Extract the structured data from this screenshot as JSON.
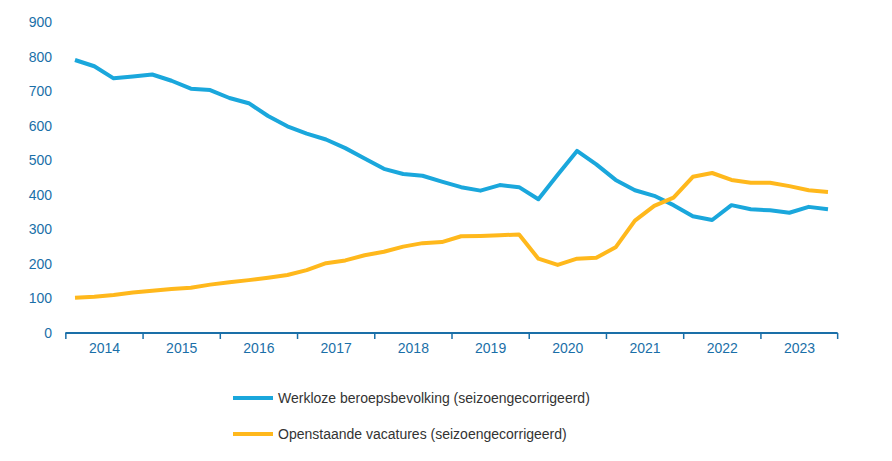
{
  "chart_data": {
    "type": "line",
    "categories": [
      "2014",
      null,
      null,
      null,
      "2015",
      null,
      null,
      null,
      "2016",
      null,
      null,
      null,
      "2017",
      null,
      null,
      null,
      "2018",
      null,
      null,
      null,
      "2019",
      null,
      null,
      null,
      "2020",
      null,
      null,
      null,
      "2021",
      null,
      null,
      null,
      "2022",
      null,
      null,
      null,
      "2023",
      null,
      null,
      null
    ],
    "series": [
      {
        "name": "Werkloze beroepsbevolking (seizoengecorrigeerd)",
        "color": "#1aa7dc",
        "values": [
          790,
          772,
          737,
          742,
          748,
          730,
          707,
          703,
          680,
          665,
          628,
          598,
          577,
          560,
          535,
          505,
          475,
          460,
          455,
          438,
          422,
          412,
          428,
          422,
          387,
          458,
          527,
          488,
          443,
          413,
          397,
          370,
          338,
          327,
          370,
          358,
          355,
          348,
          365,
          358
        ]
      },
      {
        "name": "Openstaande vacatures (seizoengecorrigeerd)",
        "color": "#ffb81c",
        "values": [
          102,
          105,
          110,
          117,
          122,
          127,
          131,
          140,
          147,
          153,
          160,
          168,
          182,
          202,
          210,
          225,
          235,
          250,
          260,
          263,
          280,
          281,
          283,
          285,
          215,
          197,
          215,
          218,
          248,
          325,
          368,
          392,
          452,
          463,
          443,
          435,
          435,
          425,
          413,
          408
        ]
      }
    ],
    "ylim": [
      0,
      900
    ],
    "yticks": [
      0,
      100,
      200,
      300,
      400,
      500,
      600,
      700,
      800,
      900
    ],
    "grid": false,
    "legend": "bottom"
  }
}
